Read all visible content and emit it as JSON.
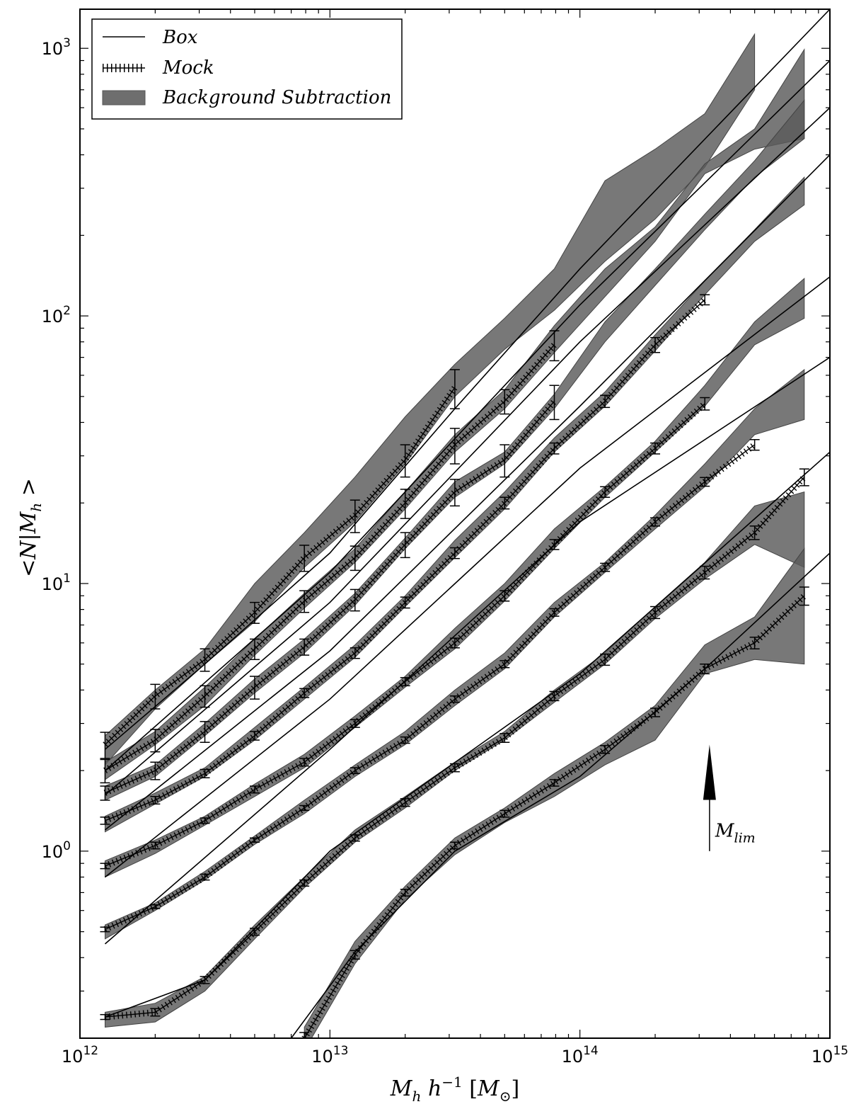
{
  "chart_data": {
    "type": "line",
    "xscale": "log",
    "yscale": "log",
    "xlim": [
      1000000000000.0,
      1000000000000000.0
    ],
    "ylim": [
      0.2,
      1400
    ],
    "xlabel": "M_h h^{-1} [M_⊙]",
    "ylabel": "<N|M_h >",
    "xticks": [
      {
        "value": 1000000000000.0,
        "base": "10",
        "exp": "12"
      },
      {
        "value": 10000000000000.0,
        "base": "10",
        "exp": "13"
      },
      {
        "value": 100000000000000.0,
        "base": "10",
        "exp": "14"
      },
      {
        "value": 1000000000000000.0,
        "base": "10",
        "exp": "15"
      }
    ],
    "yticks": [
      {
        "value": 1,
        "base": "10",
        "exp": "0"
      },
      {
        "value": 10,
        "base": "10",
        "exp": "1"
      },
      {
        "value": 100,
        "base": "10",
        "exp": "2"
      },
      {
        "value": 1000,
        "base": "10",
        "exp": "3"
      }
    ],
    "legend": {
      "position": "top-left",
      "entries": [
        {
          "key": "box",
          "label": "Box",
          "style": "solid"
        },
        {
          "key": "mock",
          "label": "Mock",
          "style": "hatched"
        },
        {
          "key": "bg",
          "label": "Background Subtraction",
          "style": "band"
        }
      ]
    },
    "annotation": {
      "text": "M",
      "sub": "lim",
      "x": 330000000000000.0,
      "y_from": 1.0,
      "y_to": 2.5
    },
    "band_x": [
      1260000000000.0,
      2000000000000.0,
      3160000000000.0,
      5000000000000.0,
      7900000000000.0,
      12600000000000.0,
      20000000000000.0,
      31600000000000.0,
      50000000000000.0,
      79000000000000.0,
      126000000000000.0,
      200000000000000.0,
      316000000000000.0,
      500000000000000.0,
      790000000000000.0
    ],
    "mock_x": [
      1260000000000.0,
      2000000000000.0,
      3160000000000.0,
      5000000000000.0,
      7900000000000.0,
      12600000000000.0,
      20000000000000.0,
      31600000000000.0,
      50000000000000.0,
      79000000000000.0,
      126000000000000.0,
      200000000000000.0,
      316000000000000.0,
      500000000000000.0,
      790000000000000.0
    ],
    "series": [
      {
        "box": [
          [
            1260000000000.0,
            2.4
          ],
          [
            3160000000000.0,
            5.0
          ],
          [
            10000000000000.0,
            13.0
          ],
          [
            31600000000000.0,
            45
          ],
          [
            100000000000000.0,
            150
          ],
          [
            1000000000000000.0,
            1400
          ]
        ],
        "mock": [
          2.5,
          3.8,
          5.2,
          7.8,
          12.5,
          18,
          29,
          54,
          null,
          null,
          null,
          null,
          null,
          null,
          null
        ],
        "band_lo": [
          2.1,
          3.4,
          5.0,
          7.2,
          11.5,
          17,
          28,
          50,
          75,
          105,
          160,
          230,
          360,
          700,
          null
        ],
        "band_hi": [
          2.7,
          4.0,
          5.7,
          10.0,
          15.5,
          25,
          42,
          66,
          98,
          150,
          320,
          420,
          570,
          1130,
          null
        ],
        "errors": [
          0.28,
          0.4,
          0.5,
          0.7,
          1.4,
          2.5,
          4,
          9,
          null,
          null,
          null,
          null,
          null,
          null,
          null
        ]
      },
      {
        "box": [
          [
            1260000000000.0,
            2.0
          ],
          [
            10000000000000.0,
            11.0
          ],
          [
            100000000000000.0,
            110
          ],
          [
            1000000000000000.0,
            900
          ]
        ],
        "mock": [
          2.0,
          2.6,
          3.8,
          5.7,
          8.6,
          12.5,
          20,
          33,
          48,
          78,
          null,
          null,
          null,
          null,
          null
        ],
        "band_lo": [
          1.85,
          2.5,
          3.5,
          5.4,
          8.1,
          12.0,
          19,
          31,
          45,
          73,
          118,
          190,
          340,
          420,
          460
        ],
        "band_hi": [
          2.15,
          2.8,
          4.1,
          6.2,
          9.2,
          13.5,
          22,
          36,
          53,
          92,
          150,
          215,
          370,
          500,
          990
        ],
        "errors": [
          0.2,
          0.25,
          0.35,
          0.5,
          0.8,
          1.3,
          2.5,
          5,
          5,
          10,
          null,
          null,
          null,
          null,
          null
        ]
      },
      {
        "box": [
          [
            1260000000000.0,
            1.62
          ],
          [
            10000000000000.0,
            8.5
          ],
          [
            100000000000000.0,
            80
          ],
          [
            1000000000000000.0,
            600
          ]
        ],
        "mock": [
          1.65,
          2.0,
          2.8,
          4.1,
          5.8,
          8.7,
          14,
          22,
          29,
          48,
          null,
          null,
          null,
          null,
          null
        ],
        "band_lo": [
          1.55,
          1.9,
          2.7,
          3.9,
          5.5,
          8.3,
          13.5,
          21,
          28,
          45,
          80,
          130,
          210,
          330,
          460
        ],
        "band_hi": [
          1.75,
          2.1,
          3.0,
          4.4,
          6.2,
          9.2,
          14.8,
          24,
          31,
          51,
          95,
          150,
          240,
          380,
          640
        ],
        "errors": [
          0.1,
          0.15,
          0.25,
          0.4,
          0.4,
          0.8,
          1.5,
          2.5,
          4,
          7,
          null,
          null,
          null,
          null,
          null
        ]
      },
      {
        "box": [
          [
            1260000000000.0,
            1.2
          ],
          [
            10000000000000.0,
            5.6
          ],
          [
            100000000000000.0,
            46
          ],
          [
            1000000000000000.0,
            400
          ]
        ],
        "mock": [
          1.3,
          1.55,
          1.95,
          2.7,
          3.9,
          5.5,
          8.5,
          13,
          20,
          32,
          48,
          78,
          115,
          null,
          null
        ],
        "band_lo": [
          1.18,
          1.5,
          1.9,
          2.6,
          3.7,
          5.3,
          8.2,
          12.5,
          19,
          31,
          46,
          74,
          120,
          190,
          260
        ],
        "band_hi": [
          1.35,
          1.65,
          2.05,
          2.9,
          4.1,
          5.9,
          9.0,
          14.5,
          22,
          35,
          52,
          85,
          135,
          210,
          330
        ],
        "errors": [
          0.04,
          0.05,
          0.07,
          0.1,
          0.15,
          0.25,
          0.4,
          0.6,
          1,
          1.5,
          2.5,
          5,
          5,
          null,
          null
        ]
      },
      {
        "box": [
          [
            1260000000000.0,
            0.8
          ],
          [
            10000000000000.0,
            3.7
          ],
          [
            100000000000000.0,
            27
          ],
          [
            1000000000000000.0,
            140
          ]
        ],
        "mock": [
          0.88,
          1.05,
          1.3,
          1.7,
          2.15,
          3.0,
          4.3,
          6.0,
          9.0,
          14,
          22,
          32,
          47,
          null,
          null
        ],
        "band_lo": [
          0.8,
          0.98,
          1.25,
          1.6,
          2.05,
          2.9,
          4.1,
          5.7,
          8.6,
          13.5,
          21,
          31,
          46,
          78,
          98
        ],
        "band_hi": [
          0.92,
          1.1,
          1.35,
          1.78,
          2.3,
          3.2,
          4.5,
          6.8,
          10.0,
          16,
          23,
          34,
          55,
          95,
          138
        ],
        "errors": [
          0.02,
          0.03,
          0.03,
          0.05,
          0.07,
          0.1,
          0.15,
          0.25,
          0.4,
          0.6,
          1,
          1.5,
          2.5,
          null,
          null
        ]
      },
      {
        "box": [
          [
            1260000000000.0,
            0.45
          ],
          [
            10000000000000.0,
            2.4
          ],
          [
            100000000000000.0,
            17
          ],
          [
            1000000000000000.0,
            70
          ]
        ],
        "mock": [
          0.51,
          0.62,
          0.8,
          1.1,
          1.45,
          2.0,
          2.6,
          3.7,
          5.0,
          7.8,
          11.5,
          17,
          24,
          33,
          null
        ],
        "band_lo": [
          0.47,
          0.6,
          0.78,
          1.06,
          1.38,
          1.9,
          2.5,
          3.5,
          4.8,
          7.5,
          11,
          16,
          23,
          36,
          41
        ],
        "band_hi": [
          0.53,
          0.64,
          0.84,
          1.14,
          1.55,
          2.1,
          2.8,
          4.0,
          5.5,
          8.5,
          12,
          18,
          28,
          45,
          63
        ],
        "errors": [
          0.01,
          0.01,
          0.02,
          0.02,
          0.03,
          0.05,
          0.07,
          0.1,
          0.15,
          0.25,
          0.4,
          0.6,
          0.9,
          1.5,
          null
        ]
      },
      {
        "box": [
          [
            1260000000000.0,
            0.24
          ],
          [
            3160000000000.0,
            0.33
          ],
          [
            10000000000000.0,
            1.0
          ],
          [
            100000000000000.0,
            4.6
          ],
          [
            1000000000000000.0,
            31
          ]
        ],
        "mock": [
          0.24,
          0.25,
          0.33,
          0.5,
          0.76,
          1.12,
          1.52,
          2.05,
          2.65,
          3.8,
          5.2,
          7.8,
          11,
          15.5,
          25
        ],
        "band_lo": [
          0.22,
          0.23,
          0.3,
          0.47,
          0.73,
          1.08,
          1.45,
          2.0,
          2.6,
          3.6,
          5.0,
          7.4,
          10.4,
          14,
          11.5
        ],
        "band_hi": [
          0.25,
          0.27,
          0.34,
          0.53,
          0.8,
          1.2,
          1.6,
          2.15,
          2.8,
          4.0,
          5.5,
          8.2,
          12,
          19.5,
          22
        ],
        "errors": [
          0.005,
          0.008,
          0.01,
          0.015,
          0.02,
          0.03,
          0.05,
          0.07,
          0.1,
          0.15,
          0.25,
          0.4,
          0.6,
          0.9,
          1.8
        ]
      },
      {
        "box": [
          [
            7000000000000.0,
            0.2
          ],
          [
            12600000000000.0,
            0.42
          ],
          [
            31600000000000.0,
            1.0
          ],
          [
            100000000000000.0,
            1.9
          ],
          [
            316000000000000.0,
            4.8
          ],
          [
            1000000000000000.0,
            13
          ]
        ],
        "mock": [
          null,
          null,
          null,
          null,
          0.2,
          0.41,
          0.7,
          1.05,
          1.38,
          1.8,
          2.4,
          3.3,
          4.8,
          6.0,
          9.0
        ],
        "band_lo": [
          null,
          null,
          null,
          null,
          0.18,
          0.38,
          0.66,
          0.97,
          1.28,
          1.6,
          2.1,
          2.6,
          4.6,
          5.2,
          5.0
        ],
        "band_hi": [
          null,
          null,
          null,
          null,
          0.22,
          0.46,
          0.74,
          1.12,
          1.45,
          1.95,
          2.55,
          3.5,
          5.9,
          7.5,
          13.5
        ],
        "errors": [
          null,
          null,
          null,
          null,
          0.01,
          0.015,
          0.02,
          0.03,
          0.04,
          0.05,
          0.08,
          0.12,
          0.2,
          0.3,
          0.7
        ]
      }
    ]
  }
}
